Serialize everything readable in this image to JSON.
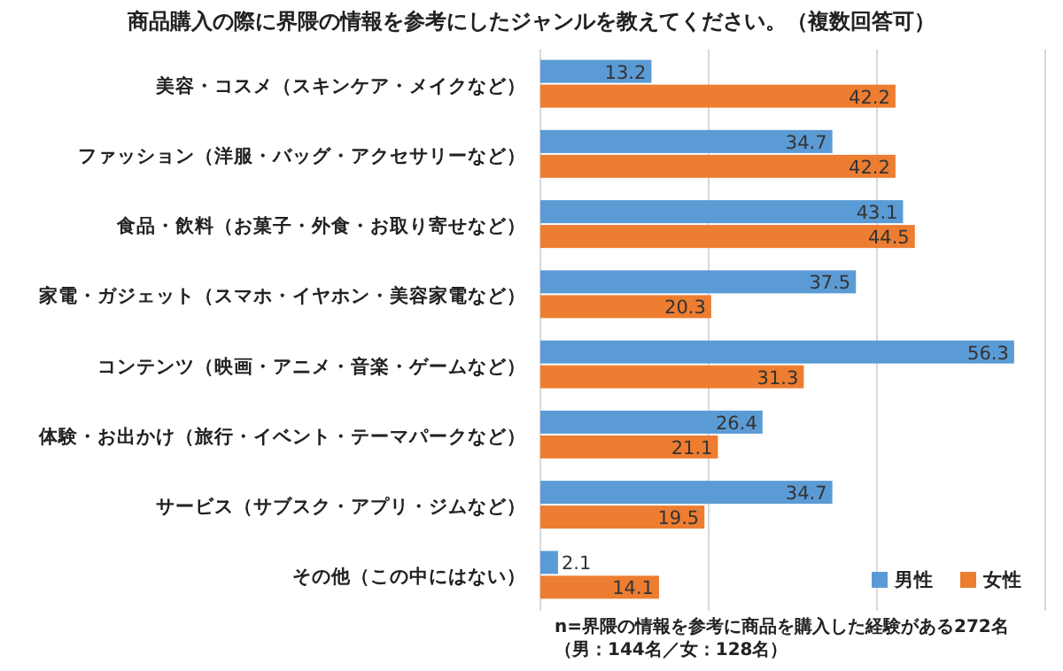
{
  "chart_data": {
    "type": "bar",
    "orientation": "horizontal",
    "title": "商品購入の際に界隈の情報を参考にしたジャンルを教えてください。（複数回答可）",
    "categories": [
      "美容・コスメ（スキンケア・メイクなど）",
      "ファッション（洋服・バッグ・アクセサリーなど）",
      "食品・飲料（お菓子・外食・お取り寄せなど）",
      "家電・ガジェット（スマホ・イヤホン・美容家電など）",
      "コンテンツ（映画・アニメ・音楽・ゲームなど）",
      "体験・お出かけ（旅行・イベント・テーマパークなど）",
      "サービス（サブスク・アプリ・ジムなど）",
      "その他（この中にはない）"
    ],
    "series": [
      {
        "name": "男性",
        "color": "#5b9bd5",
        "values": [
          13.2,
          34.7,
          43.1,
          37.5,
          56.3,
          26.4,
          34.7,
          2.1
        ]
      },
      {
        "name": "女性",
        "color": "#ed7d31",
        "values": [
          42.2,
          42.2,
          44.5,
          20.3,
          31.3,
          21.1,
          19.5,
          14.1
        ]
      }
    ],
    "xlim": [
      0,
      60
    ],
    "xticks": [
      {
        "value": 0,
        "label": null
      },
      {
        "value": 20,
        "label": null
      },
      {
        "value": 40,
        "label": null
      },
      {
        "value": 60,
        "label": null
      }
    ],
    "tick_labels": "y",
    "grid": "x",
    "legend": "bottom right",
    "data_labels": true,
    "annotations": [
      "n=界隈の情報を参考に商品を購入した経験がある272名",
      "（男：144名／女：128名）"
    ]
  }
}
